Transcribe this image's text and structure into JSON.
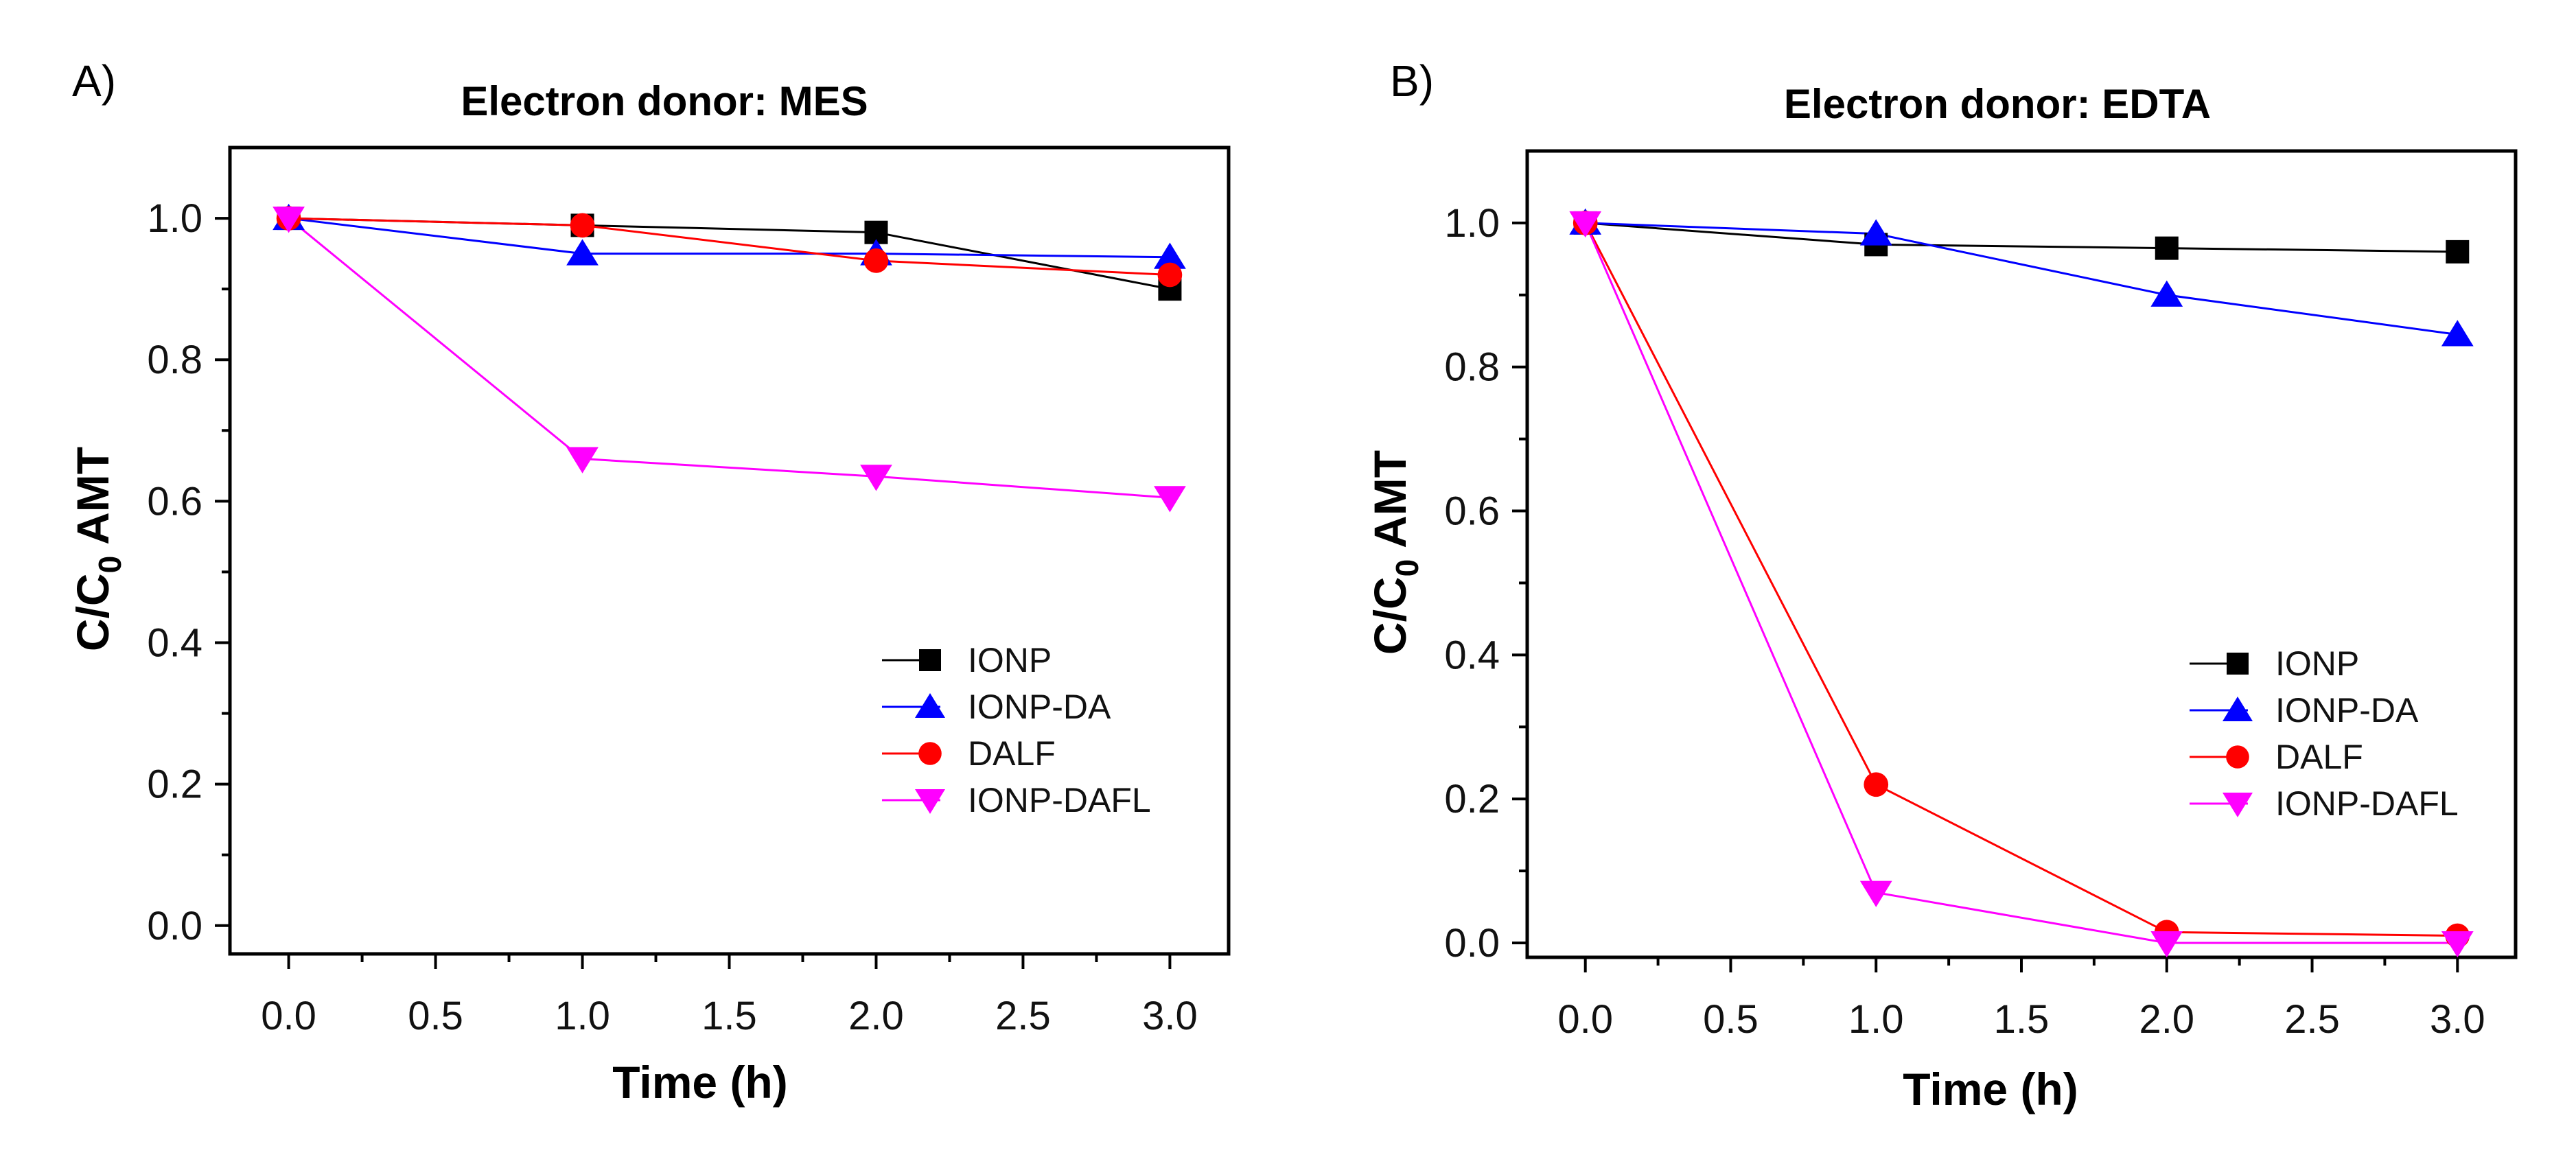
{
  "chart_data": [
    {
      "panel": "A)",
      "type": "line",
      "title": "Electron donor: MES",
      "xlabel": "Time (h)",
      "ylabel": "C/C0 AMT",
      "ylabel_main": "C/C",
      "ylabel_sub": "0",
      "ylabel_rest": " AMT",
      "xlim": [
        -0.2,
        3.2
      ],
      "ylim": [
        -0.04,
        1.1
      ],
      "x_ticks": [
        0.0,
        0.5,
        1.0,
        1.5,
        2.0,
        2.5,
        3.0
      ],
      "x_tick_labels": [
        "0.0",
        "0.5",
        "1.0",
        "1.5",
        "2.0",
        "2.5",
        "3.0"
      ],
      "y_ticks": [
        0.0,
        0.2,
        0.4,
        0.6,
        0.8,
        1.0
      ],
      "y_tick_labels": [
        "0.0",
        "0.2",
        "0.4",
        "0.6",
        "0.8",
        "1.0"
      ],
      "legend_position": "lower-right",
      "x": [
        0,
        1,
        2,
        3
      ],
      "series": [
        {
          "name": "IONP",
          "marker": "square",
          "color": "#000000",
          "values": [
            1.0,
            0.99,
            0.98,
            0.9
          ]
        },
        {
          "name": "IONP-DA",
          "marker": "triangle-up",
          "color": "#0000ff",
          "values": [
            1.0,
            0.95,
            0.95,
            0.945
          ]
        },
        {
          "name": "DALF",
          "marker": "circle",
          "color": "#ff0000",
          "values": [
            1.0,
            0.99,
            0.94,
            0.92
          ]
        },
        {
          "name": "IONP-DAFL",
          "marker": "triangle-down",
          "color": "#ff00ff",
          "values": [
            1.0,
            0.66,
            0.635,
            0.605
          ]
        }
      ]
    },
    {
      "panel": "B)",
      "type": "line",
      "title": "Electron donor: EDTA",
      "xlabel": "Time (h)",
      "ylabel": "C/C0 AMT",
      "ylabel_main": "C/C",
      "ylabel_sub": "0",
      "ylabel_rest": " AMT",
      "xlim": [
        -0.2,
        3.2
      ],
      "ylim": [
        -0.02,
        1.1
      ],
      "x_ticks": [
        0.0,
        0.5,
        1.0,
        1.5,
        2.0,
        2.5,
        3.0
      ],
      "x_tick_labels": [
        "0.0",
        "0.5",
        "1.0",
        "1.5",
        "2.0",
        "2.5",
        "3.0"
      ],
      "y_ticks": [
        0.0,
        0.2,
        0.4,
        0.6,
        0.8,
        1.0
      ],
      "y_tick_labels": [
        "0.0",
        "0.2",
        "0.4",
        "0.6",
        "0.8",
        "1.0"
      ],
      "legend_position": "lower-right",
      "x": [
        0,
        1,
        2,
        3
      ],
      "series": [
        {
          "name": "IONP",
          "marker": "square",
          "color": "#000000",
          "values": [
            1.0,
            0.97,
            0.965,
            0.96
          ]
        },
        {
          "name": "IONP-DA",
          "marker": "triangle-up",
          "color": "#0000ff",
          "values": [
            1.0,
            0.985,
            0.9,
            0.845
          ]
        },
        {
          "name": "DALF",
          "marker": "circle",
          "color": "#ff0000",
          "values": [
            1.0,
            0.22,
            0.015,
            0.01
          ]
        },
        {
          "name": "IONP-DAFL",
          "marker": "triangle-down",
          "color": "#ff00ff",
          "values": [
            1.0,
            0.07,
            0.0,
            0.0
          ]
        }
      ]
    }
  ]
}
